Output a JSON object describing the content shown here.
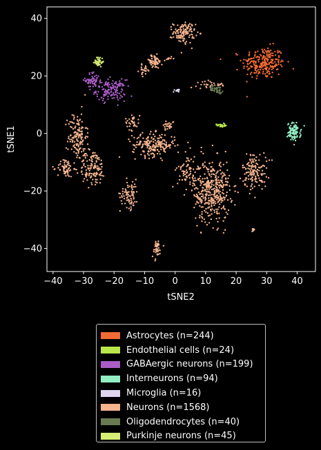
{
  "chart_data": {
    "type": "scatter",
    "title": "",
    "xlabel": "tSNE2",
    "ylabel": "tSNE1",
    "xlim": [
      -42,
      46
    ],
    "ylim": [
      -48,
      44
    ],
    "xticks": [
      -40,
      -30,
      -20,
      -10,
      0,
      10,
      20,
      30,
      40
    ],
    "yticks": [
      -40,
      -20,
      0,
      20,
      40
    ],
    "grid": false,
    "legend_position": "below",
    "series": [
      {
        "name": "Astrocytes (n=244)",
        "color": "#f26b35",
        "clusters": [
          {
            "x": 29,
            "y": 24.5,
            "sx": 3.5,
            "sy": 2.8,
            "n": 244
          }
        ]
      },
      {
        "name": "Endothelial cells (n=24)",
        "color": "#b9e64a",
        "clusters": [
          {
            "x": 15,
            "y": 2.8,
            "sx": 0.7,
            "sy": 0.3,
            "n": 24
          }
        ]
      },
      {
        "name": "GABAergic neurons (n=199)",
        "color": "#a85cc4",
        "clusters": [
          {
            "x": -27,
            "y": 18.5,
            "sx": 1.2,
            "sy": 1.4,
            "n": 60
          },
          {
            "x": -21,
            "y": 15,
            "sx": 2.4,
            "sy": 1.8,
            "n": 139
          }
        ]
      },
      {
        "name": "Interneurons (n=94)",
        "color": "#93efc3",
        "clusters": [
          {
            "x": 39,
            "y": 0.5,
            "sx": 1.1,
            "sy": 1.6,
            "n": 94
          }
        ]
      },
      {
        "name": "Microglia (n=16)",
        "color": "#ddd6ee",
        "clusters": [
          {
            "x": 0.5,
            "y": 15,
            "sx": 0.5,
            "sy": 0.3,
            "n": 16
          }
        ]
      },
      {
        "name": "Neurons (n=1568)",
        "color": "#f4b48e",
        "clusters": [
          {
            "x": 3,
            "y": 35,
            "sx": 1.8,
            "sy": 1.8,
            "n": 120
          },
          {
            "x": -7,
            "y": 25,
            "sx": 1.4,
            "sy": 1.2,
            "n": 60
          },
          {
            "x": -10,
            "y": 22,
            "sx": 0.9,
            "sy": 0.9,
            "n": 20
          },
          {
            "x": -2,
            "y": 26,
            "sx": 0.9,
            "sy": 0.3,
            "n": 10
          },
          {
            "x": -32,
            "y": -1,
            "sx": 1.5,
            "sy": 4.2,
            "n": 140
          },
          {
            "x": -36,
            "y": -12,
            "sx": 1.3,
            "sy": 1.6,
            "n": 60
          },
          {
            "x": -27,
            "y": -12,
            "sx": 2.2,
            "sy": 3.2,
            "n": 130
          },
          {
            "x": -15,
            "y": -21,
            "sx": 1.5,
            "sy": 2.5,
            "n": 80
          },
          {
            "x": -14,
            "y": 4,
            "sx": 1.2,
            "sy": 1.4,
            "n": 35
          },
          {
            "x": -7,
            "y": -4,
            "sx": 3.5,
            "sy": 2.0,
            "n": 200
          },
          {
            "x": -2,
            "y": 3,
            "sx": 0.9,
            "sy": 0.8,
            "n": 25
          },
          {
            "x": 4,
            "y": -13,
            "sx": 1.6,
            "sy": 3.0,
            "n": 70
          },
          {
            "x": 12,
            "y": -20,
            "sx": 3.0,
            "sy": 5.5,
            "n": 400
          },
          {
            "x": 26,
            "y": -13,
            "sx": 2.0,
            "sy": 3.2,
            "n": 140
          },
          {
            "x": 25.5,
            "y": -34,
            "sx": 0.4,
            "sy": 0.6,
            "n": 8
          },
          {
            "x": -6,
            "y": -40,
            "sx": 0.8,
            "sy": 1.6,
            "n": 40
          },
          {
            "x": 12,
            "y": 17,
            "sx": 2.5,
            "sy": 0.6,
            "n": 30
          }
        ]
      },
      {
        "name": "Oligodendrocytes (n=40)",
        "color": "#697a52",
        "clusters": [
          {
            "x": 13.5,
            "y": 15.3,
            "sx": 1.1,
            "sy": 0.6,
            "n": 40
          }
        ]
      },
      {
        "name": "Purkinje neurons (n=45)",
        "color": "#d6ee74",
        "clusters": [
          {
            "x": -25,
            "y": 25,
            "sx": 0.7,
            "sy": 0.9,
            "n": 45
          }
        ]
      }
    ]
  }
}
